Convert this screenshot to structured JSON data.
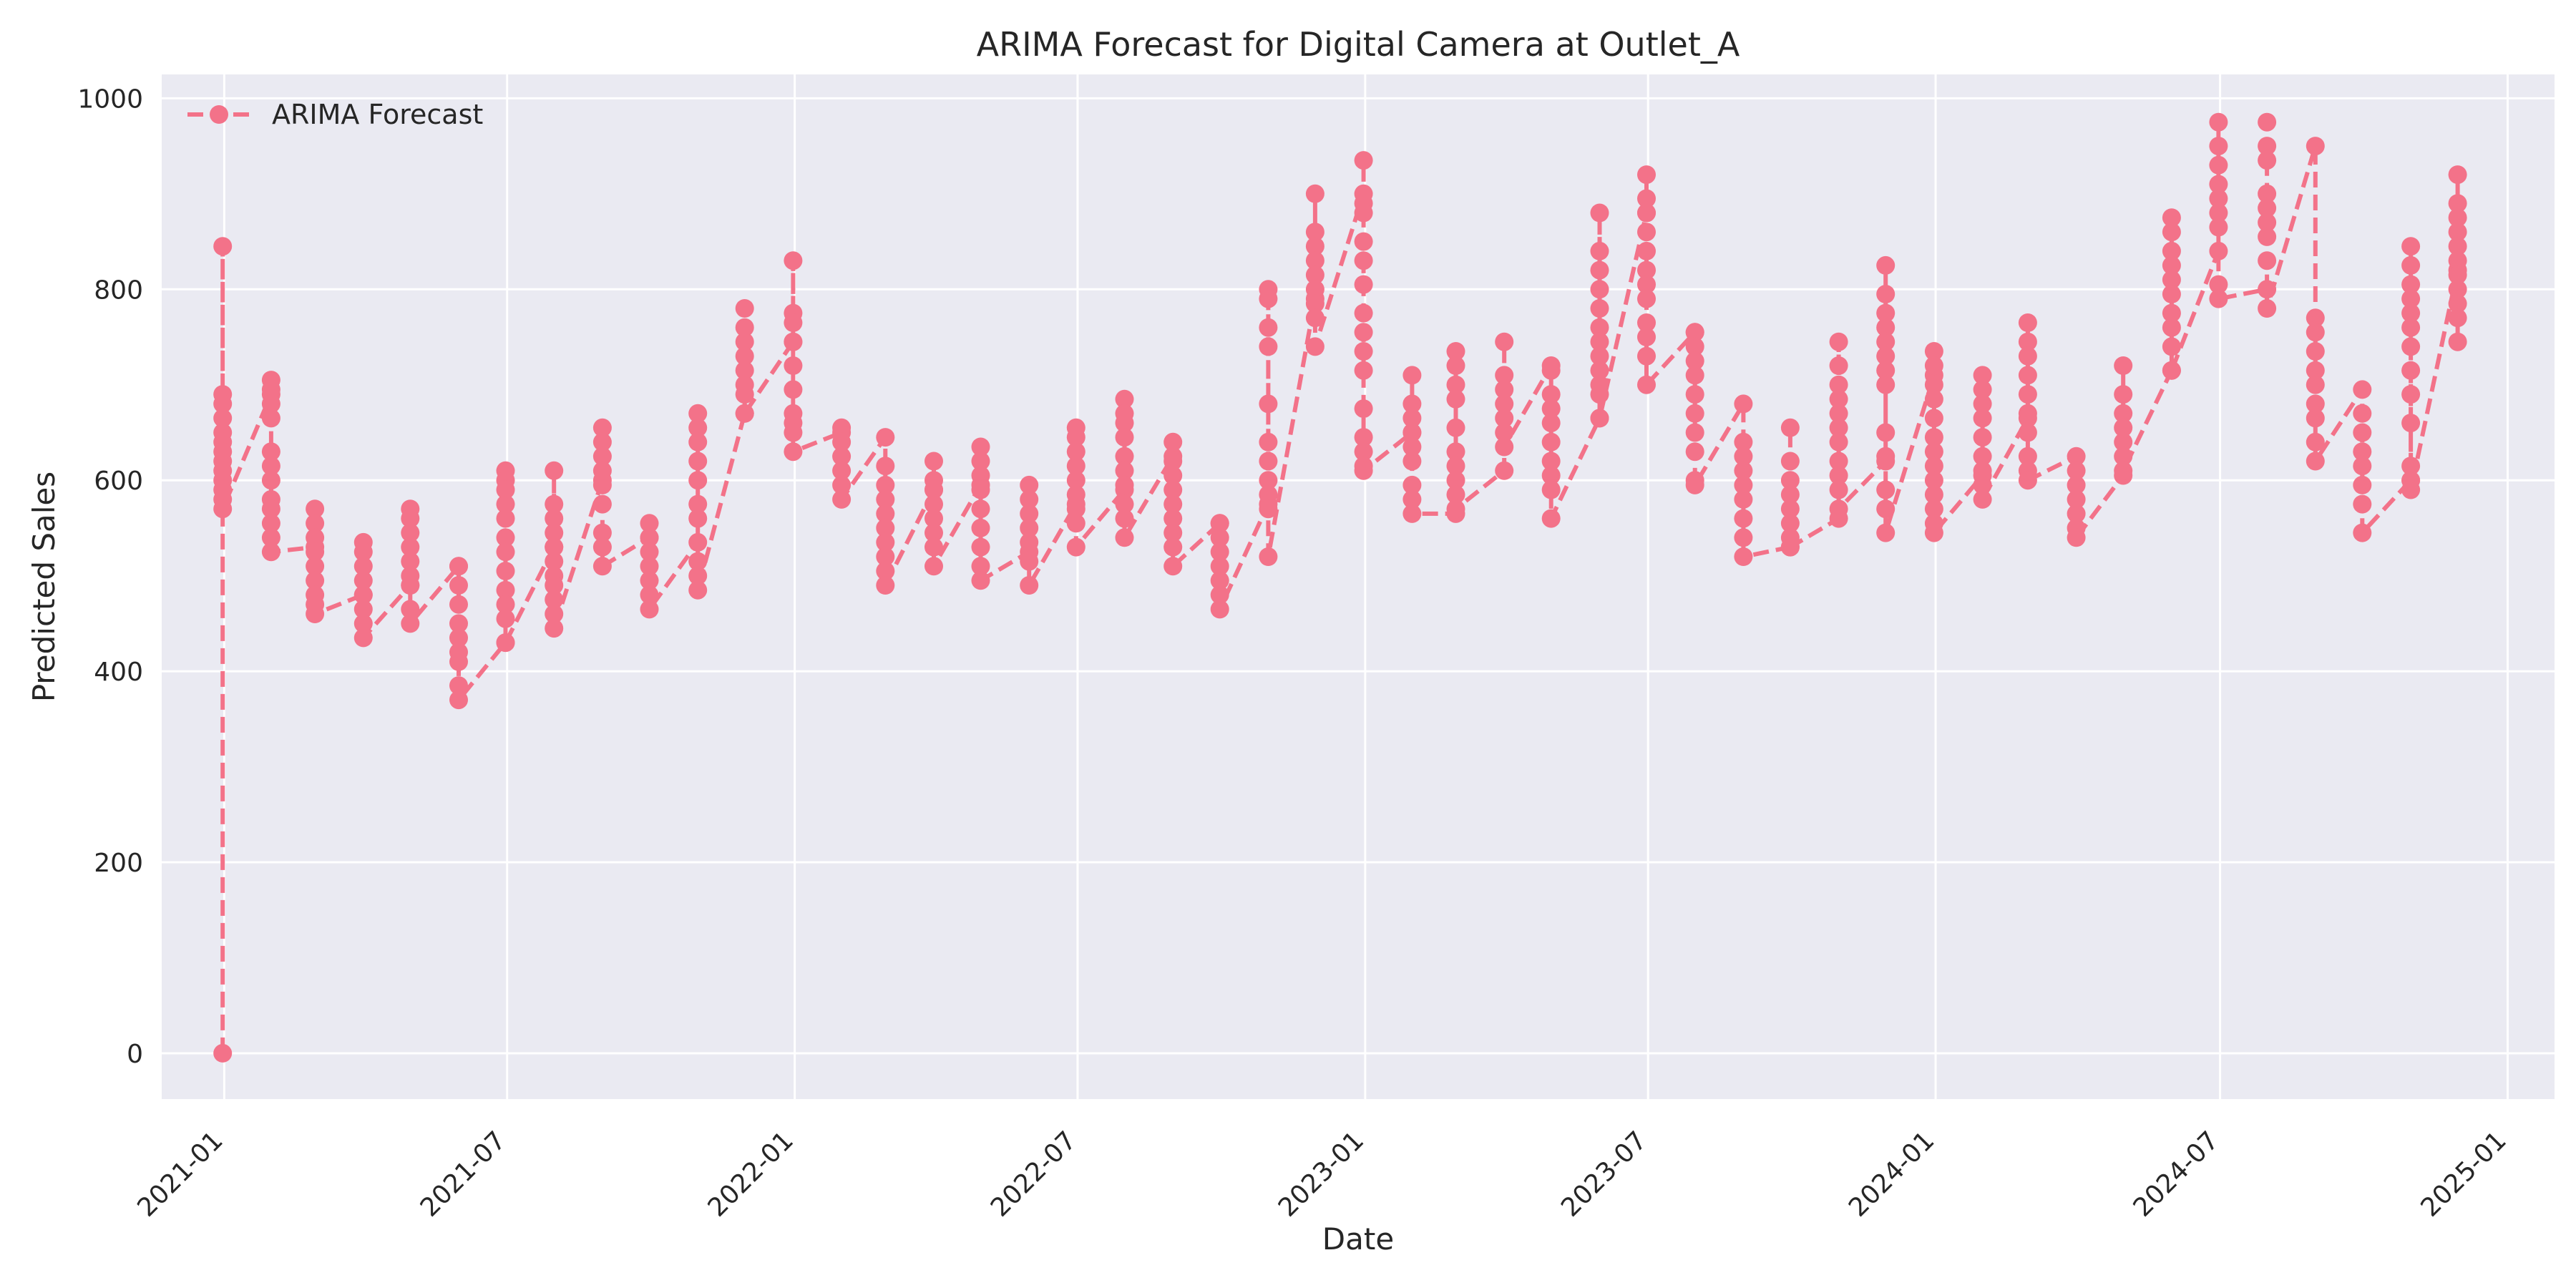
{
  "chart_data": {
    "type": "line",
    "title": "ARIMA Forecast for Digital Camera at Outlet_A",
    "xlabel": "Date",
    "ylabel": "Predicted Sales",
    "xlim": [
      "2020-11-22",
      "2025-01-31"
    ],
    "ylim": [
      -48,
      1025
    ],
    "x_ticks": [
      "2021-01",
      "2021-07",
      "2022-01",
      "2022-07",
      "2023-01",
      "2023-07",
      "2024-01",
      "2024-07",
      "2025-01"
    ],
    "y_ticks": [
      0,
      200,
      400,
      600,
      800,
      1000
    ],
    "grid": true,
    "legend": {
      "position": "top-left",
      "entries": [
        "ARIMA Forecast"
      ]
    },
    "colors": {
      "series": "#f37289",
      "plot_bg": "#eaeaf2",
      "grid": "#ffffff"
    },
    "series": [
      {
        "name": "ARIMA Forecast",
        "marker": "circle",
        "line_style": "dashed",
        "clusters": [
          {
            "x": "2020-12-31",
            "y": [
              0,
              845,
              690,
              680,
              665,
              650,
              640,
              630,
              620,
              610,
              600,
              590,
              580,
              570
            ]
          },
          {
            "x": "2021-01-31",
            "y": [
              690,
              705,
              695,
              680,
              665,
              630,
              615,
              600,
              580,
              570,
              555,
              540,
              525
            ]
          },
          {
            "x": "2021-02-28",
            "y": [
              530,
              570,
              555,
              540,
              525,
              510,
              495,
              480,
              470,
              460
            ]
          },
          {
            "x": "2021-03-31",
            "y": [
              480,
              535,
              525,
              510,
              495,
              480,
              465,
              450,
              435
            ]
          },
          {
            "x": "2021-04-30",
            "y": [
              490,
              570,
              560,
              545,
              530,
              515,
              500,
              490,
              465,
              450
            ]
          },
          {
            "x": "2021-05-31",
            "y": [
              510,
              510,
              490,
              470,
              450,
              435,
              420,
              410,
              385,
              370
            ]
          },
          {
            "x": "2021-06-30",
            "y": [
              430,
              610,
              600,
              590,
              575,
              560,
              540,
              525,
              505,
              485,
              470,
              455,
              430
            ]
          },
          {
            "x": "2021-07-31",
            "y": [
              530,
              610,
              575,
              560,
              545,
              530,
              515,
              500,
              490,
              475,
              460,
              445
            ]
          },
          {
            "x": "2021-08-31",
            "y": [
              600,
              655,
              640,
              625,
              610,
              595,
              575,
              545,
              530,
              510
            ]
          },
          {
            "x": "2021-09-30",
            "y": [
              540,
              555,
              540,
              525,
              510,
              495,
              480,
              465
            ]
          },
          {
            "x": "2021-10-31",
            "y": [
              535,
              670,
              655,
              640,
              620,
              600,
              575,
              560,
              515,
              500,
              485
            ]
          },
          {
            "x": "2021-11-30",
            "y": [
              670,
              780,
              760,
              745,
              730,
              715,
              700,
              690,
              670
            ]
          },
          {
            "x": "2021-12-31",
            "y": [
              745,
              830,
              775,
              765,
              745,
              720,
              695,
              670,
              660,
              650,
              630
            ]
          },
          {
            "x": "2022-01-31",
            "y": [
              650,
              655,
              640,
              625,
              610,
              595,
              580
            ]
          },
          {
            "x": "2022-02-28",
            "y": [
              645,
              615,
              595,
              580,
              565,
              550,
              535,
              520,
              505,
              490
            ]
          },
          {
            "x": "2022-03-31",
            "y": [
              590,
              620,
              600,
              590,
              575,
              560,
              545,
              530,
              510
            ]
          },
          {
            "x": "2022-04-30",
            "y": [
              595,
              635,
              620,
              605,
              590,
              570,
              550,
              530,
              510,
              495
            ]
          },
          {
            "x": "2022-05-31",
            "y": [
              525,
              595,
              580,
              565,
              550,
              535,
              515,
              490
            ]
          },
          {
            "x": "2022-06-30",
            "y": [
              575,
              655,
              645,
              630,
              615,
              600,
              585,
              570,
              555,
              530
            ]
          },
          {
            "x": "2022-07-31",
            "y": [
              590,
              685,
              670,
              660,
              645,
              625,
              610,
              595,
              575,
              560,
              540
            ]
          },
          {
            "x": "2022-08-31",
            "y": [
              625,
              640,
              620,
              605,
              590,
              575,
              560,
              545,
              530,
              510
            ]
          },
          {
            "x": "2022-09-30",
            "y": [
              555,
              555,
              540,
              525,
              510,
              495,
              480,
              465
            ]
          },
          {
            "x": "2022-10-31",
            "y": [
              575,
              800,
              790,
              760,
              740,
              680,
              640,
              620,
              600,
              585,
              570,
              520
            ]
          },
          {
            "x": "2022-11-30",
            "y": [
              790,
              900,
              860,
              845,
              830,
              815,
              800,
              785,
              770,
              740
            ]
          },
          {
            "x": "2022-12-31",
            "y": [
              900,
              935,
              890,
              880,
              850,
              830,
              805,
              775,
              755,
              735,
              715,
              675,
              645,
              630,
              615,
              610
            ]
          },
          {
            "x": "2023-01-31",
            "y": [
              650,
              710,
              680,
              665,
              650,
              635,
              620,
              595,
              580,
              565
            ]
          },
          {
            "x": "2023-02-28",
            "y": [
              565,
              735,
              720,
              700,
              685,
              655,
              630,
              615,
              600,
              585,
              570
            ]
          },
          {
            "x": "2023-03-31",
            "y": [
              610,
              745,
              710,
              695,
              680,
              665,
              650,
              635
            ]
          },
          {
            "x": "2023-04-30",
            "y": [
              720,
              715,
              690,
              675,
              660,
              640,
              620,
              605,
              590,
              560
            ]
          },
          {
            "x": "2023-05-31",
            "y": [
              665,
              880,
              840,
              820,
              800,
              780,
              760,
              745,
              730,
              715,
              700,
              690,
              665
            ]
          },
          {
            "x": "2023-06-30",
            "y": [
              880,
              920,
              895,
              880,
              860,
              840,
              820,
              805,
              790,
              765,
              750,
              730,
              700
            ]
          },
          {
            "x": "2023-07-31",
            "y": [
              755,
              755,
              740,
              725,
              710,
              690,
              670,
              650,
              630,
              600,
              595
            ]
          },
          {
            "x": "2023-08-31",
            "y": [
              680,
              640,
              625,
              610,
              595,
              580,
              560,
              540,
              520
            ]
          },
          {
            "x": "2023-09-30",
            "y": [
              530,
              655,
              620,
              600,
              585,
              570,
              555,
              540,
              530
            ]
          },
          {
            "x": "2023-10-31",
            "y": [
              560,
              745,
              720,
              700,
              685,
              670,
              655,
              640,
              620,
              605,
              590,
              570
            ]
          },
          {
            "x": "2023-11-30",
            "y": [
              620,
              825,
              795,
              775,
              760,
              745,
              730,
              715,
              700,
              650,
              625,
              590,
              570,
              545
            ]
          },
          {
            "x": "2023-12-31",
            "y": [
              710,
              735,
              720,
              700,
              685,
              665,
              645,
              630,
              615,
              600,
              585,
              570,
              555,
              545
            ]
          },
          {
            "x": "2024-01-31",
            "y": [
              605,
              710,
              695,
              680,
              665,
              645,
              625,
              610,
              595,
              580
            ]
          },
          {
            "x": "2024-02-29",
            "y": [
              665,
              765,
              745,
              730,
              710,
              690,
              670,
              650,
              625,
              610,
              600
            ]
          },
          {
            "x": "2024-03-31",
            "y": [
              625,
              610,
              595,
              580,
              565,
              550,
              540
            ]
          },
          {
            "x": "2024-04-30",
            "y": [
              605,
              720,
              690,
              670,
              655,
              640,
              625,
              610
            ]
          },
          {
            "x": "2024-05-31",
            "y": [
              715,
              875,
              860,
              840,
              825,
              810,
              795,
              775,
              760,
              740,
              715
            ]
          },
          {
            "x": "2024-06-30",
            "y": [
              840,
              975,
              950,
              930,
              910,
              895,
              880,
              865,
              805,
              790
            ]
          },
          {
            "x": "2024-07-31",
            "y": [
              800,
              975,
              950,
              935,
              900,
              885,
              870,
              855,
              830,
              780
            ]
          },
          {
            "x": "2024-08-31",
            "y": [
              950,
              770,
              755,
              735,
              715,
              700,
              680,
              665,
              640,
              620
            ]
          },
          {
            "x": "2024-09-30",
            "y": [
              695,
              670,
              650,
              630,
              615,
              595,
              575,
              545
            ]
          },
          {
            "x": "2024-10-31",
            "y": [
              600,
              845,
              825,
              805,
              790,
              775,
              760,
              740,
              715,
              690,
              660,
              615,
              600,
              590
            ]
          },
          {
            "x": "2024-11-30",
            "y": [
              820,
              920,
              890,
              875,
              860,
              845,
              830,
              815,
              800,
              785,
              770,
              745
            ]
          }
        ]
      }
    ]
  }
}
